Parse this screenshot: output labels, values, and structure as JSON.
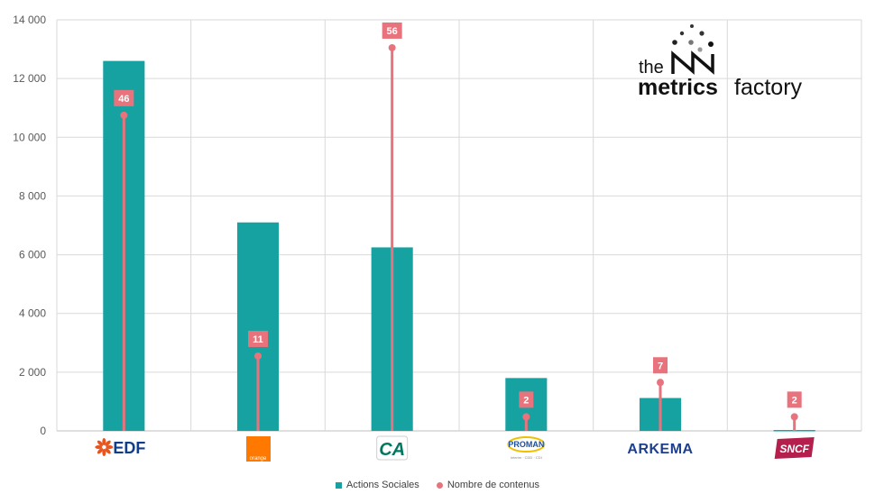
{
  "chart_data": {
    "type": "bar",
    "categories": [
      "EDF",
      "orange",
      "CA",
      "PROMAN",
      "ARKEMA",
      "SNCF"
    ],
    "category_labels": [
      {
        "text": "EDF",
        "color": "#e8541d"
      },
      {
        "text": "orange",
        "color": "#ff7900"
      },
      {
        "text": "CA",
        "color": "#00785f"
      },
      {
        "text": "PROMAN",
        "sub": "Interim · CDD · CDI",
        "color": "#1d4f9c"
      },
      {
        "text": "ARKEMA",
        "color": "#1d3f8f"
      },
      {
        "text": "SNCF",
        "color": "#b51f4e"
      }
    ],
    "series": [
      {
        "name": "Actions Sociales",
        "kind": "bar",
        "color": "#17a2a2",
        "values": [
          12600,
          7100,
          6250,
          1800,
          1120,
          30
        ]
      },
      {
        "name": "Nombre de contenus",
        "kind": "lollipop",
        "color": "#e8737d",
        "values": [
          46,
          11,
          56,
          2,
          7,
          2
        ],
        "marker_y": [
          10750,
          2550,
          13050,
          480,
          1650,
          480
        ]
      }
    ],
    "ylim": [
      0,
      14000
    ],
    "yticks": [
      "0",
      "2 000",
      "4 000",
      "6 000",
      "8 000",
      "10 000",
      "12 000",
      "14 000"
    ],
    "ytick_values": [
      0,
      2000,
      4000,
      6000,
      8000,
      10000,
      12000,
      14000
    ],
    "grid": true,
    "legend_position": "bottom"
  },
  "brand": {
    "the": "the",
    "metrics": "metrics",
    "factory": "factory"
  }
}
